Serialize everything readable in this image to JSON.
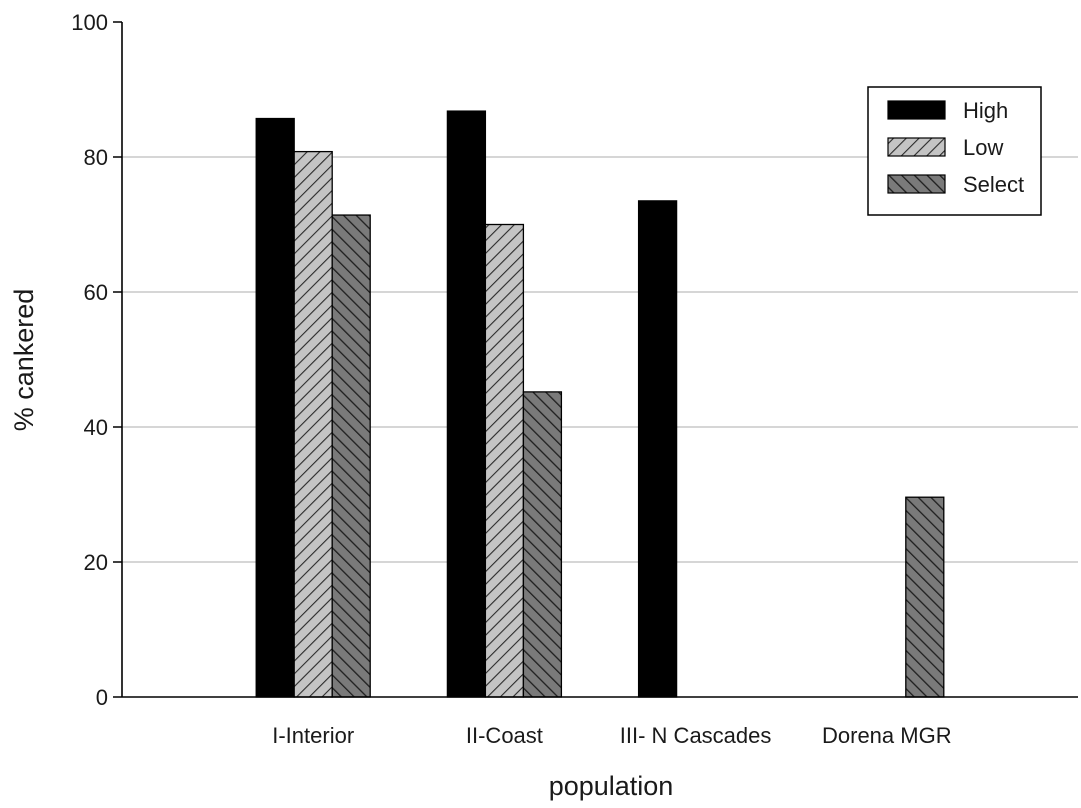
{
  "chart_data": {
    "type": "bar",
    "title": "",
    "xlabel": "population",
    "ylabel": "% cankered",
    "categories": [
      "I-Interior",
      "II-Coast",
      "III- N Cascades",
      "Dorena MGR"
    ],
    "series": [
      {
        "name": "High",
        "values": [
          85.7,
          86.8,
          73.5,
          null
        ],
        "color": "#000000",
        "fill": "solid"
      },
      {
        "name": "Low",
        "values": [
          80.8,
          70.0,
          null,
          null
        ],
        "color": "#b8b8b8",
        "fill": "light-hatch"
      },
      {
        "name": "Select",
        "values": [
          71.4,
          45.2,
          null,
          29.6
        ],
        "color": "#5a5a5a",
        "fill": "dark-hatch"
      }
    ],
    "ylim": [
      0,
      100
    ],
    "yticks": [
      "0",
      "20",
      "40",
      "60",
      "80",
      "100"
    ],
    "grid": true,
    "legend_position": "top-right"
  }
}
